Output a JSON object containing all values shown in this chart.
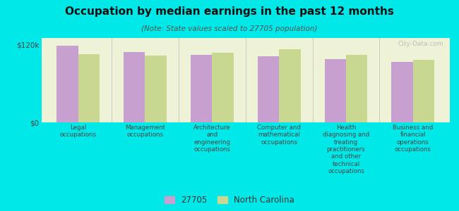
{
  "title": "Occupation by median earnings in the past 12 months",
  "subtitle": "(Note: State values scaled to 27705 population)",
  "background_color": "#00e8e8",
  "plot_background_color": "#eef3d8",
  "categories": [
    "Legal\noccupations",
    "Management\noccupations",
    "Architecture\nand\nengineering\noccupations",
    "Computer and\nmathematical\noccupations",
    "Health\ndiagnosing and\ntreating\npractitioners\nand other\ntechnical\noccupations",
    "Business and\nfinancial\noperations\noccupations"
  ],
  "values_27705": [
    118000,
    108000,
    104000,
    102000,
    98000,
    93000
  ],
  "values_nc": [
    105000,
    103000,
    107000,
    113000,
    104000,
    96000
  ],
  "color_27705": "#c8a0d0",
  "color_nc": "#c8d890",
  "ylim": [
    0,
    130000
  ],
  "yticks": [
    0,
    120000
  ],
  "ytick_labels": [
    "$0",
    "$120k"
  ],
  "legend_27705": "27705",
  "legend_nc": "North Carolina",
  "bar_width": 0.32,
  "watermark": "City-Data.com"
}
